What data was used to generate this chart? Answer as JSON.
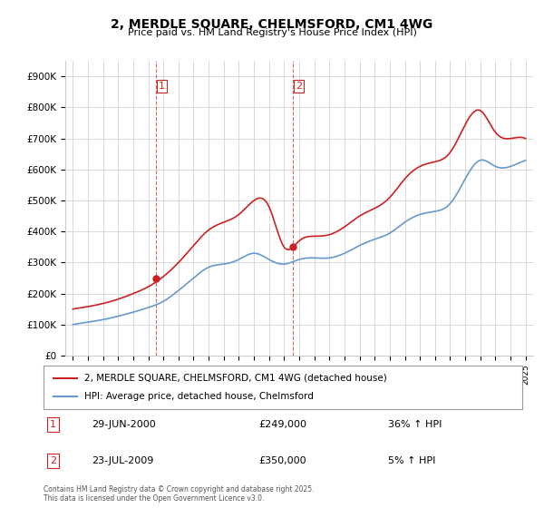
{
  "title": "2, MERDLE SQUARE, CHELMSFORD, CM1 4WG",
  "subtitle": "Price paid vs. HM Land Registry's House Price Index (HPI)",
  "xlabel": "",
  "ylabel": "",
  "ylim": [
    0,
    950000
  ],
  "yticks": [
    0,
    100000,
    200000,
    300000,
    400000,
    500000,
    600000,
    700000,
    800000,
    900000
  ],
  "ytick_labels": [
    "£0",
    "£100K",
    "£200K",
    "£300K",
    "£400K",
    "£500K",
    "£600K",
    "£700K",
    "£800K",
    "£900K"
  ],
  "hpi_color": "#6699cc",
  "price_color": "#cc2222",
  "vline_color": "#cc2222",
  "transaction1": {
    "date_label": "29-JUN-2000",
    "price": 249000,
    "hpi_pct": "36% ↑ HPI",
    "x": 2000.5,
    "label": "1"
  },
  "transaction2": {
    "date_label": "23-JUL-2009",
    "price": 350000,
    "hpi_pct": "5% ↑ HPI",
    "x": 2009.55,
    "label": "2"
  },
  "legend_price_label": "2, MERDLE SQUARE, CHELMSFORD, CM1 4WG (detached house)",
  "legend_hpi_label": "HPI: Average price, detached house, Chelmsford",
  "footnote": "Contains HM Land Registry data © Crown copyright and database right 2025.\nThis data is licensed under the Open Government Licence v3.0.",
  "background_color": "#ffffff",
  "grid_color": "#cccccc",
  "years": [
    1995,
    1996,
    1997,
    1998,
    1999,
    2000,
    2001,
    2002,
    2003,
    2004,
    2005,
    2006,
    2007,
    2008,
    2009,
    2010,
    2011,
    2012,
    2013,
    2014,
    2015,
    2016,
    2017,
    2018,
    2019,
    2020,
    2021,
    2022,
    2023,
    2024,
    2025
  ],
  "hpi_values": [
    100000,
    108000,
    116000,
    127000,
    140000,
    155000,
    175000,
    210000,
    250000,
    285000,
    295000,
    310000,
    330000,
    310000,
    295000,
    310000,
    315000,
    315000,
    330000,
    355000,
    375000,
    395000,
    430000,
    455000,
    465000,
    490000,
    570000,
    630000,
    610000,
    610000,
    630000
  ],
  "price_values": [
    150000,
    158000,
    168000,
    182000,
    200000,
    222000,
    255000,
    300000,
    355000,
    405000,
    430000,
    455000,
    500000,
    480000,
    350000,
    370000,
    385000,
    390000,
    415000,
    450000,
    475000,
    510000,
    570000,
    610000,
    625000,
    655000,
    745000,
    790000,
    720000,
    700000,
    700000
  ]
}
